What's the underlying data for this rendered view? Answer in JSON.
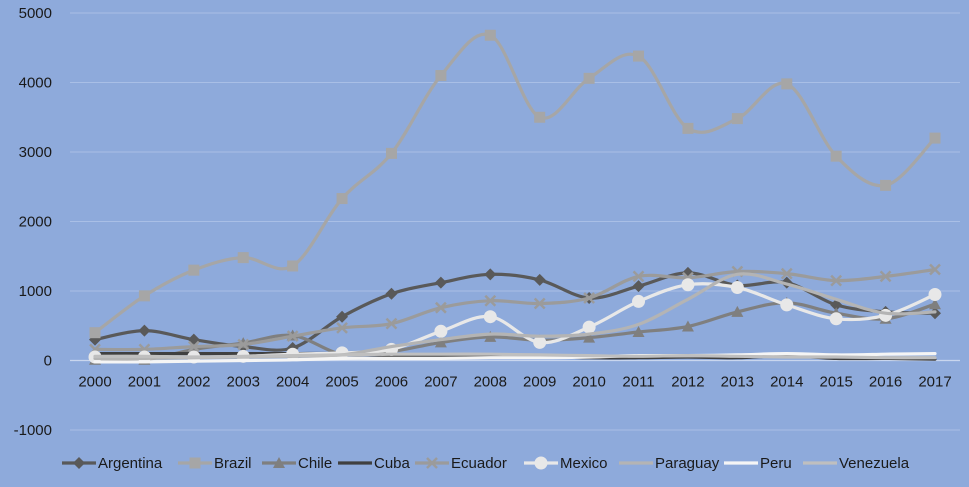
{
  "chart_data": {
    "type": "line",
    "title": "",
    "xlabel": "",
    "ylabel": "",
    "x": [
      "2000",
      "2001",
      "2002",
      "2003",
      "2004",
      "2005",
      "2006",
      "2007",
      "2008",
      "2009",
      "2010",
      "2011",
      "2012",
      "2013",
      "2014",
      "2015",
      "2016",
      "2017"
    ],
    "ylim": [
      -1000,
      5000
    ],
    "yticks": [
      "-1000",
      "0",
      "1000",
      "2000",
      "3000",
      "4000",
      "5000"
    ],
    "grid": true,
    "legend_position": "bottom",
    "series": [
      {
        "name": "Argentina",
        "color": "#595959",
        "marker": "diamond",
        "values": [
          300,
          430,
          300,
          200,
          180,
          630,
          960,
          1120,
          1240,
          1160,
          900,
          1070,
          1260,
          1080,
          1120,
          800,
          700,
          680
        ]
      },
      {
        "name": "Brazil",
        "color": "#a6a6a6",
        "marker": "square",
        "values": [
          400,
          930,
          1300,
          1480,
          1360,
          2330,
          2980,
          4100,
          4680,
          3500,
          4060,
          4380,
          3340,
          3480,
          3980,
          2940,
          2520,
          3200
        ]
      },
      {
        "name": "Chile",
        "color": "#7f7f7f",
        "marker": "triangle",
        "values": [
          10,
          10,
          160,
          250,
          360,
          90,
          130,
          260,
          340,
          290,
          330,
          410,
          490,
          700,
          830,
          680,
          600,
          810
        ]
      },
      {
        "name": "Cuba",
        "color": "#404040",
        "marker": "none",
        "values": [
          100,
          100,
          100,
          100,
          100,
          100,
          70,
          70,
          80,
          60,
          40,
          40,
          50,
          40,
          70,
          30,
          30,
          20
        ]
      },
      {
        "name": "Ecuador",
        "color": "#9b9b9b",
        "marker": "star",
        "values": [
          160,
          160,
          200,
          230,
          350,
          470,
          530,
          760,
          860,
          820,
          900,
          1210,
          1190,
          1280,
          1250,
          1150,
          1210,
          1310
        ]
      },
      {
        "name": "Mexico",
        "color": "#e8e8e8",
        "marker": "circle",
        "values": [
          50,
          50,
          50,
          60,
          90,
          110,
          160,
          420,
          630,
          260,
          480,
          850,
          1090,
          1050,
          800,
          600,
          650,
          950
        ]
      },
      {
        "name": "Paraguay",
        "color": "#b4b4b4",
        "marker": "none",
        "values": [
          30,
          30,
          40,
          50,
          60,
          80,
          200,
          300,
          380,
          350,
          380,
          520,
          880,
          1240,
          1100,
          880,
          680,
          700
        ]
      },
      {
        "name": "Peru",
        "color": "#f5f5f5",
        "marker": "none",
        "values": [
          -20,
          -20,
          -10,
          0,
          10,
          30,
          30,
          30,
          40,
          40,
          50,
          70,
          70,
          80,
          100,
          80,
          90,
          100
        ]
      },
      {
        "name": "Venezuela",
        "color": "#bfbfbf",
        "marker": "none",
        "values": [
          60,
          60,
          50,
          60,
          70,
          80,
          90,
          90,
          90,
          80,
          70,
          60,
          70,
          60,
          50,
          50,
          40,
          40
        ]
      }
    ]
  }
}
